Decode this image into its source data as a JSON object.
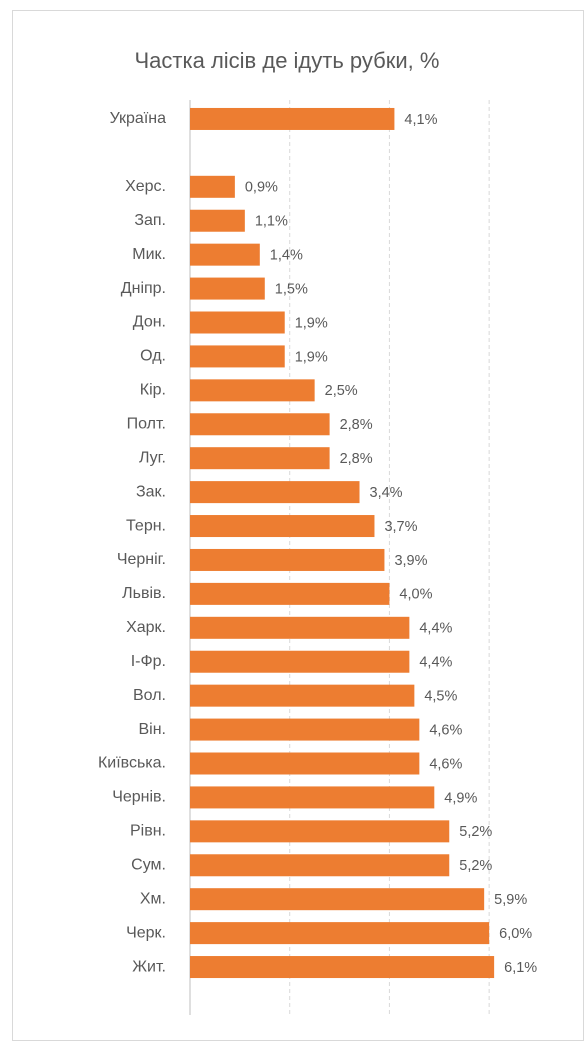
{
  "chart_data": {
    "type": "barh",
    "title": "Частка лісів де ідуть рубки, %",
    "categories": [
      "Україна",
      null,
      "Херс.",
      "Зап.",
      "Мик.",
      "Дніпр.",
      "Дон.",
      "Од.",
      "Кір.",
      "Полт.",
      "Луг.",
      "Зак.",
      "Терн.",
      "Черніг.",
      "Львів.",
      "Харк.",
      "І-Фр.",
      "Вол.",
      "Він.",
      "Київська.",
      "Чернів.",
      "Рівн.",
      "Сум.",
      "Хм.",
      "Черк.",
      "Жит."
    ],
    "values": [
      4.1,
      null,
      0.9,
      1.1,
      1.4,
      1.5,
      1.9,
      1.9,
      2.5,
      2.8,
      2.8,
      3.4,
      3.7,
      3.9,
      4.0,
      4.4,
      4.4,
      4.5,
      4.6,
      4.6,
      4.9,
      5.2,
      5.2,
      5.9,
      6.0,
      6.1
    ],
    "value_labels": [
      "4,1%",
      null,
      "0,9%",
      "1,1%",
      "1,4%",
      "1,5%",
      "1,9%",
      "1,9%",
      "2,5%",
      "2,8%",
      "2,8%",
      "3,4%",
      "3,7%",
      "3,9%",
      "4,0%",
      "4,4%",
      "4,4%",
      "4,5%",
      "4,6%",
      "4,6%",
      "4,9%",
      "5,2%",
      "5,2%",
      "5,9%",
      "6,0%",
      "6,1%"
    ],
    "color": "#ed7d31",
    "xlim": [
      0,
      7
    ],
    "xticks": [
      0,
      2,
      4,
      6
    ],
    "grid": true
  }
}
